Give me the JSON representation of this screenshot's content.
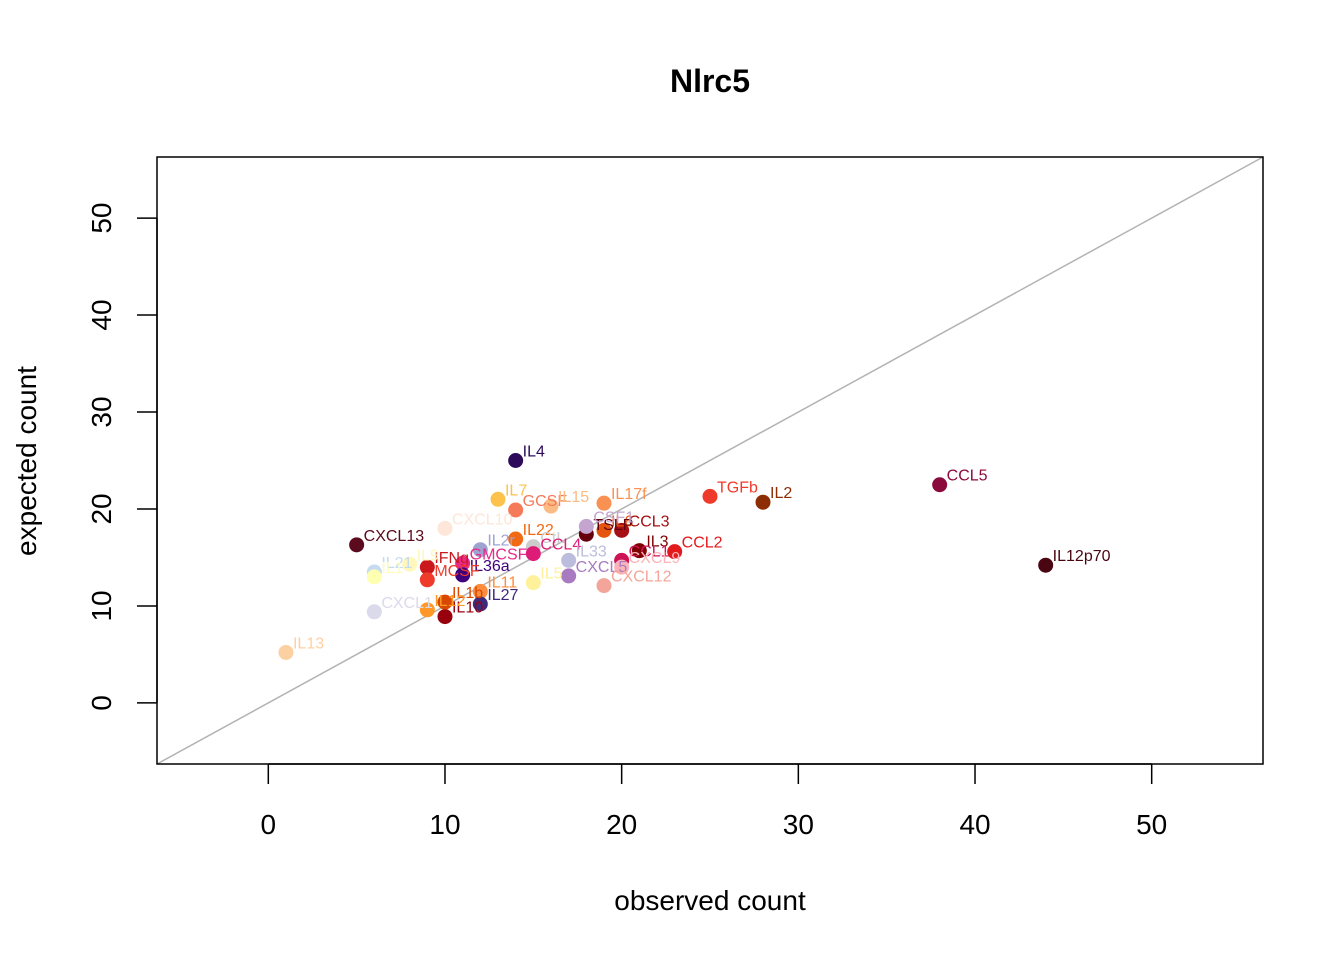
{
  "chart_data": {
    "type": "scatter",
    "title": "Nlrc5",
    "xlabel": "observed count",
    "ylabel": "expected count",
    "xlim": [
      -6.3,
      56.3
    ],
    "ylim": [
      -6.3,
      56.3
    ],
    "xticks": [
      0,
      10,
      20,
      30,
      40,
      50
    ],
    "yticks": [
      0,
      10,
      20,
      30,
      40,
      50
    ],
    "reference_line": "y = x",
    "reference_line_color": "#b3b3b3",
    "grid": false,
    "legend": "none",
    "points": [
      {
        "label": "IL4",
        "x": 14,
        "y": 25,
        "color": "#2d0b5a"
      },
      {
        "label": "CCL5",
        "x": 38,
        "y": 22.5,
        "color": "#8b0a3c"
      },
      {
        "label": "IL12p70",
        "x": 44,
        "y": 14.2,
        "color": "#4a0512"
      },
      {
        "label": "TGFb",
        "x": 25,
        "y": 21.3,
        "color": "#ef3b2c"
      },
      {
        "label": "IL2",
        "x": 28,
        "y": 20.7,
        "color": "#8c2d04"
      },
      {
        "label": "IL7",
        "x": 13,
        "y": 21,
        "color": "#fdc24c"
      },
      {
        "label": "GCSF",
        "x": 14,
        "y": 19.9,
        "color": "#f47a5a"
      },
      {
        "label": "IL15",
        "x": 16,
        "y": 20.3,
        "color": "#fdbb84"
      },
      {
        "label": "IL17f",
        "x": 19,
        "y": 20.6,
        "color": "#f99152"
      },
      {
        "label": "CXCL10",
        "x": 10,
        "y": 18,
        "color": "#fee6d8"
      },
      {
        "label": "CXCL13",
        "x": 5,
        "y": 16.3,
        "color": "#5c0a1e"
      },
      {
        "label": "CCL3",
        "x": 20,
        "y": 17.8,
        "color": "#a50f15"
      },
      {
        "label": "IL6",
        "x": 19,
        "y": 17.8,
        "color": "#e6550d"
      },
      {
        "label": "TSLP",
        "x": 18,
        "y": 17.4,
        "color": "#67000d"
      },
      {
        "label": "CSF1",
        "x": 18,
        "y": 18.2,
        "color": "#c4a5cf"
      },
      {
        "label": "IL22",
        "x": 14,
        "y": 16.9,
        "color": "#f16913"
      },
      {
        "label": "IL2r",
        "x": 12,
        "y": 15.8,
        "color": "#9ea3d1"
      },
      {
        "label": "CtL",
        "x": 15,
        "y": 16.1,
        "color": "#cccccc"
      },
      {
        "label": "CCL4",
        "x": 15,
        "y": 15.4,
        "color": "#dd1c77"
      },
      {
        "label": "IL3",
        "x": 21,
        "y": 15.7,
        "color": "#7f0000"
      },
      {
        "label": "CCL2",
        "x": 23,
        "y": 15.6,
        "color": "#e31a1c"
      },
      {
        "label": "CCL1",
        "x": 20,
        "y": 14.7,
        "color": "#ce1256"
      },
      {
        "label": "CXCL9",
        "x": 20,
        "y": 14,
        "color": "#fbb4b9"
      },
      {
        "label": "IL33",
        "x": 17,
        "y": 14.7,
        "color": "#bcbddc"
      },
      {
        "label": "CXCL5",
        "x": 17,
        "y": 13.1,
        "color": "#a87bc1"
      },
      {
        "label": "CXCL12",
        "x": 19,
        "y": 12.1,
        "color": "#f4a59a"
      },
      {
        "label": "GMCSF",
        "x": 11,
        "y": 14.4,
        "color": "#e7298a"
      },
      {
        "label": "IFNg",
        "x": 9,
        "y": 14,
        "color": "#cb181d"
      },
      {
        "label": "IL36a",
        "x": 11,
        "y": 13.2,
        "color": "#3f007d"
      },
      {
        "label": "MCSF",
        "x": 9,
        "y": 12.7,
        "color": "#ef3b2c"
      },
      {
        "label": "IL21",
        "x": 6,
        "y": 13.5,
        "color": "#c6dbef"
      },
      {
        "label": "IL1",
        "x": 6,
        "y": 13,
        "color": "#ffffb2"
      },
      {
        "label": "IL9",
        "x": 8,
        "y": 14.3,
        "color": "#fff7bc"
      },
      {
        "label": "IL5",
        "x": 15,
        "y": 12.4,
        "color": "#fff09b"
      },
      {
        "label": "IL11",
        "x": 12,
        "y": 11.5,
        "color": "#fd8d3c"
      },
      {
        "label": "IL10",
        "x": 10,
        "y": 8.9,
        "color": "#99000d"
      },
      {
        "label": "IL1b",
        "x": 10,
        "y": 10.4,
        "color": "#d94801"
      },
      {
        "label": "IL12",
        "x": 9,
        "y": 9.6,
        "color": "#fe9929"
      },
      {
        "label": "IL27",
        "x": 12,
        "y": 10.2,
        "color": "#3f2a7a"
      },
      {
        "label": "CXCL1",
        "x": 6,
        "y": 9.4,
        "color": "#dadaeb"
      },
      {
        "label": "IL13",
        "x": 1,
        "y": 5.2,
        "color": "#fdd0a2"
      }
    ]
  }
}
